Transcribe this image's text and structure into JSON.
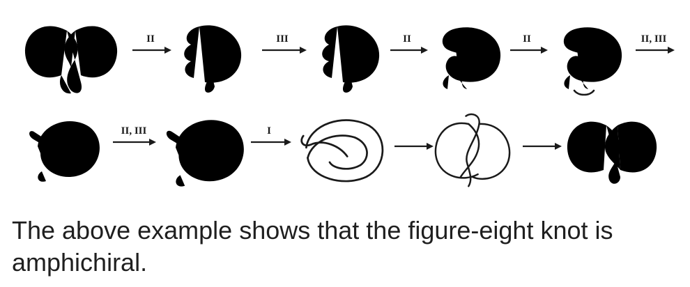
{
  "row1": {
    "labels": [
      "II",
      "III",
      "II",
      "II",
      "II, III"
    ]
  },
  "row2": {
    "labels": [
      "II, III",
      "I",
      "",
      ""
    ]
  },
  "caption": "The above example shows that the figure-eight knot is amphichiral."
}
